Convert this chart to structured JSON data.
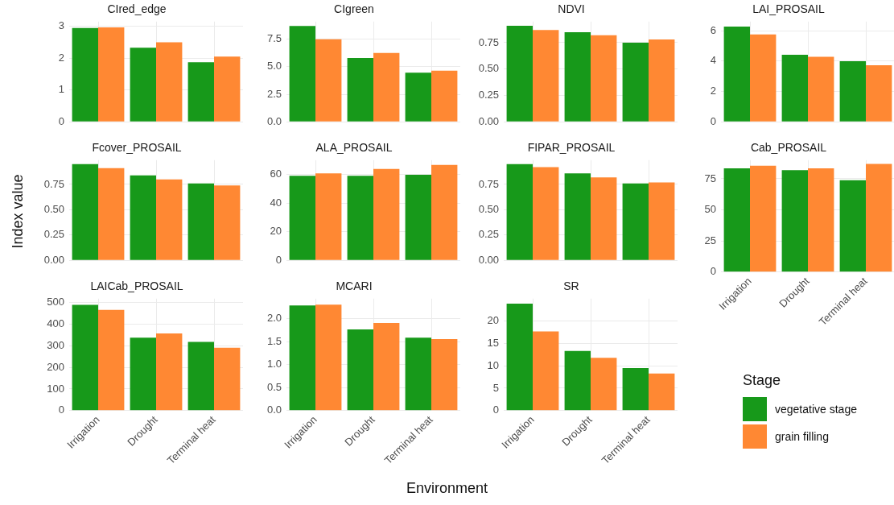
{
  "chart_data": [
    {
      "type": "bar",
      "title": "CIred_edge",
      "categories": [
        null,
        null,
        null
      ],
      "series": [
        {
          "color": "#17991a",
          "values": [
            2.95,
            2.33,
            1.87
          ]
        },
        {
          "color": "#ff8833",
          "values": [
            2.97,
            2.5,
            2.05
          ]
        }
      ],
      "ylim": [
        0,
        3.15
      ],
      "yticks": [
        0,
        1,
        2,
        3
      ],
      "grid": true,
      "tick_labels": "y"
    },
    {
      "type": "bar",
      "title": "CIgreen",
      "categories": [
        null,
        null,
        null
      ],
      "series": [
        {
          "color": "#17991a",
          "values": [
            8.7,
            5.8,
            4.45
          ]
        },
        {
          "color": "#ff8833",
          "values": [
            7.5,
            6.25,
            4.65
          ]
        }
      ],
      "ylim": [
        0,
        9.1
      ],
      "yticks": [
        {
          "value": 0,
          "label": "0.0"
        },
        2.5,
        {
          "value": 5,
          "label": "5.0"
        },
        7.5
      ],
      "grid": true,
      "tick_labels": "y"
    },
    {
      "type": "bar",
      "title": "NDVI",
      "categories": [
        null,
        null,
        null
      ],
      "series": [
        {
          "color": "#17991a",
          "values": [
            0.91,
            0.85,
            0.75
          ]
        },
        {
          "color": "#ff8833",
          "values": [
            0.87,
            0.82,
            0.78
          ]
        }
      ],
      "ylim": [
        0,
        0.95
      ],
      "yticks": [
        {
          "value": 0,
          "label": "0.00"
        },
        0.25,
        {
          "value": 0.5,
          "label": "0.50"
        },
        0.75
      ],
      "grid": true,
      "tick_labels": "y"
    },
    {
      "type": "bar",
      "title": "LAI_PROSAIL",
      "categories": [
        null,
        null,
        null
      ],
      "series": [
        {
          "color": "#17991a",
          "values": [
            6.27,
            4.42,
            3.99
          ]
        },
        {
          "color": "#ff8833",
          "values": [
            5.75,
            4.28,
            3.73
          ]
        }
      ],
      "ylim": [
        0,
        6.6
      ],
      "yticks": [
        0,
        2,
        4,
        6
      ],
      "grid": true,
      "tick_labels": "y"
    },
    {
      "type": "bar",
      "title": "Fcover_PROSAIL",
      "ylabel": "Index value",
      "categories": [
        null,
        null,
        null
      ],
      "series": [
        {
          "color": "#17991a",
          "values": [
            0.95,
            0.84,
            0.76
          ]
        },
        {
          "color": "#ff8833",
          "values": [
            0.91,
            0.8,
            0.74
          ]
        }
      ],
      "ylim": [
        0,
        0.99
      ],
      "yticks": [
        {
          "value": 0,
          "label": "0.00"
        },
        0.25,
        {
          "value": 0.5,
          "label": "0.50"
        },
        0.75
      ],
      "grid": true,
      "tick_labels": "y"
    },
    {
      "type": "bar",
      "title": "ALA_PROSAIL",
      "categories": [
        null,
        null,
        null
      ],
      "series": [
        {
          "color": "#17991a",
          "values": [
            59,
            59,
            59.8
          ]
        },
        {
          "color": "#ff8833",
          "values": [
            60.8,
            63.9,
            66.6
          ]
        }
      ],
      "ylim": [
        0,
        70
      ],
      "yticks": [
        0,
        20,
        40,
        60
      ],
      "grid": true,
      "tick_labels": "y"
    },
    {
      "type": "bar",
      "title": "FIPAR_PROSAIL",
      "categories": [
        null,
        null,
        null
      ],
      "series": [
        {
          "color": "#17991a",
          "values": [
            0.95,
            0.86,
            0.76
          ]
        },
        {
          "color": "#ff8833",
          "values": [
            0.92,
            0.82,
            0.77
          ]
        }
      ],
      "ylim": [
        0,
        0.99
      ],
      "yticks": [
        {
          "value": 0,
          "label": "0.00"
        },
        0.25,
        {
          "value": 0.5,
          "label": "0.50"
        },
        0.75
      ],
      "grid": true,
      "tick_labels": "y"
    },
    {
      "type": "bar",
      "title": "Cab_PROSAIL",
      "categories": [
        "Irrigation",
        "Drought",
        "Terminal heat"
      ],
      "series": [
        {
          "color": "#17991a",
          "values": [
            83.4,
            82,
            73.9
          ]
        },
        {
          "color": "#ff8833",
          "values": [
            85.5,
            83.4,
            86.9
          ]
        }
      ],
      "ylim": [
        0,
        90
      ],
      "yticks": [
        0,
        25,
        50,
        75
      ],
      "grid": true
    },
    {
      "type": "bar",
      "title": "LAICab_PROSAIL",
      "categories": [
        "Irrigation",
        "Drought",
        "Terminal heat"
      ],
      "series": [
        {
          "color": "#17991a",
          "values": [
            489,
            337,
            318
          ]
        },
        {
          "color": "#ff8833",
          "values": [
            466,
            357,
            291
          ]
        }
      ],
      "ylim": [
        0,
        518
      ],
      "yticks": [
        0,
        100,
        200,
        300,
        400,
        500
      ],
      "grid": true
    },
    {
      "type": "bar",
      "title": "MCARI",
      "xlabel": "Environment",
      "categories": [
        "Irrigation",
        "Drought",
        "Terminal heat"
      ],
      "series": [
        {
          "color": "#17991a",
          "values": [
            2.29,
            1.77,
            1.59
          ]
        },
        {
          "color": "#ff8833",
          "values": [
            2.31,
            1.91,
            1.56
          ]
        }
      ],
      "ylim": [
        0,
        2.44
      ],
      "yticks": [
        {
          "value": 0,
          "label": "0.0"
        },
        0.5,
        {
          "value": 1,
          "label": "1.0"
        },
        1.5,
        {
          "value": 2,
          "label": "2.0"
        }
      ],
      "grid": true
    },
    {
      "type": "bar",
      "title": "SR",
      "legend": "right",
      "legend_title": "Stage",
      "categories": [
        "Irrigation",
        "Drought",
        "Terminal heat"
      ],
      "series": [
        {
          "name": "vegetative stage",
          "color": "#17991a",
          "values": [
            23.9,
            13.3,
            9.5
          ]
        },
        {
          "name": "grain filling",
          "color": "#ff8833",
          "values": [
            17.7,
            11.8,
            8.3
          ]
        }
      ],
      "ylim": [
        0,
        25
      ],
      "yticks": [
        0,
        5,
        10,
        15,
        20
      ],
      "grid": true
    }
  ]
}
